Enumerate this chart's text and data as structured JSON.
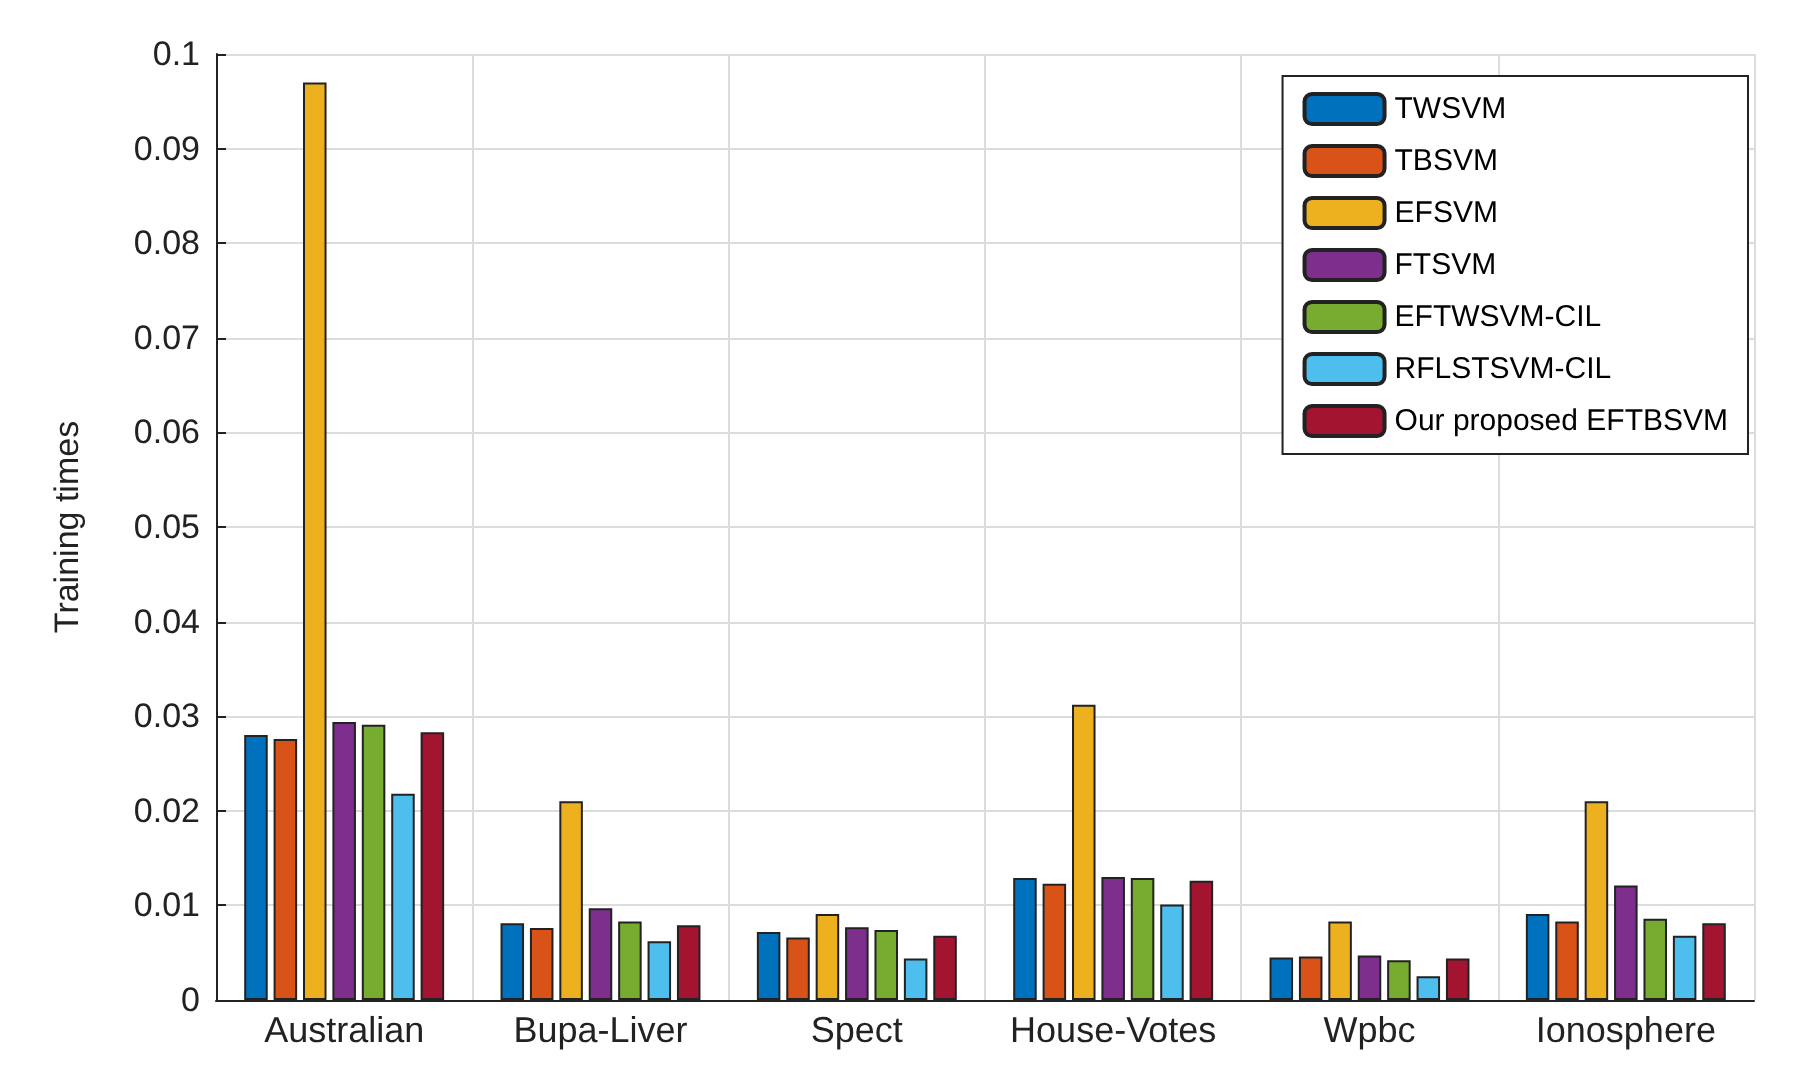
{
  "chart_data": {
    "type": "bar",
    "ylabel": "Training times",
    "categories": [
      "Australian",
      "Bupa-Liver",
      "Spect",
      "House-Votes",
      "Wpbc",
      "Ionosphere"
    ],
    "series": [
      {
        "name": "TWSVM",
        "color": "#0072bd",
        "values": [
          0.028,
          0.0081,
          0.0072,
          0.0129,
          0.0045,
          0.0091
        ]
      },
      {
        "name": "TBSVM",
        "color": "#d95319",
        "values": [
          0.0276,
          0.0076,
          0.0066,
          0.0123,
          0.0046,
          0.0083
        ]
      },
      {
        "name": "EFSVM",
        "color": "#edb120",
        "values": [
          0.097,
          0.021,
          0.0091,
          0.0312,
          0.0083,
          0.021
        ]
      },
      {
        "name": "FTSVM",
        "color": "#7e2f8e",
        "values": [
          0.0294,
          0.0097,
          0.0077,
          0.013,
          0.0047,
          0.0121
        ]
      },
      {
        "name": "EFTWSVM-CIL",
        "color": "#77ac30",
        "values": [
          0.0291,
          0.0083,
          0.0074,
          0.0129,
          0.0042,
          0.0086
        ]
      },
      {
        "name": "RFLSTSVM-CIL",
        "color": "#4dbeee",
        "values": [
          0.0218,
          0.0062,
          0.0044,
          0.0101,
          0.0025,
          0.0068
        ]
      },
      {
        "name": "Our proposed EFTBSVM",
        "color": "#a2142f",
        "values": [
          0.0283,
          0.0079,
          0.0068,
          0.0126,
          0.0044,
          0.0081
        ]
      }
    ],
    "ylim": [
      0,
      0.1
    ],
    "yticks": [
      0,
      0.01,
      0.02,
      0.03,
      0.04,
      0.05,
      0.06,
      0.07,
      0.08,
      0.09,
      0.1
    ],
    "grid": true,
    "legend": "top right"
  }
}
